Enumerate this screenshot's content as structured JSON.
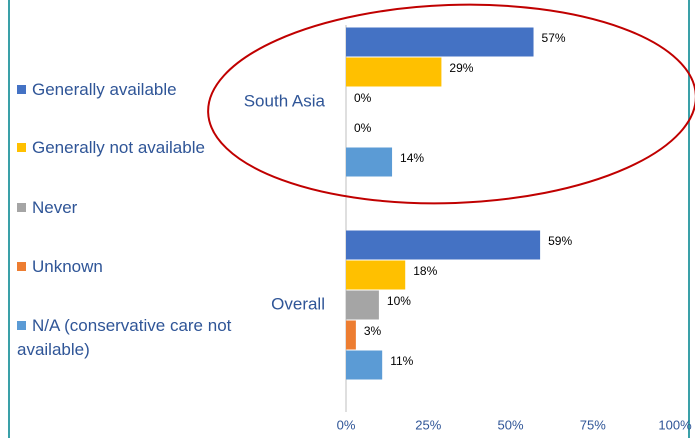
{
  "chart_data": {
    "type": "bar",
    "orientation": "horizontal",
    "categories": [
      "South Asia",
      "Overall"
    ],
    "series": [
      {
        "name": "Generally available",
        "color": "#4472c4",
        "values": [
          57,
          59
        ],
        "value_labels": [
          "57%",
          "59%"
        ]
      },
      {
        "name": "Generally not available",
        "color": "#ffc000",
        "values": [
          29,
          18
        ],
        "value_labels": [
          "29%",
          "18%"
        ]
      },
      {
        "name": "Never",
        "color": "#a5a5a5",
        "values": [
          0,
          10
        ],
        "value_labels": [
          "0%",
          "10%"
        ]
      },
      {
        "name": "Unknown",
        "color": "#ed7d31",
        "values": [
          0,
          3
        ],
        "value_labels": [
          "0%",
          "3%"
        ]
      },
      {
        "name": "N/A (conservative care not available)",
        "color": "#5b9bd5",
        "values": [
          14,
          11
        ],
        "value_labels": [
          "14%",
          "11%"
        ]
      }
    ],
    "xlim": [
      0,
      100
    ],
    "xticks": [
      {
        "value": 0,
        "label": "0%"
      },
      {
        "value": 25,
        "label": "25%"
      },
      {
        "value": 50,
        "label": "50%"
      },
      {
        "value": 75,
        "label": "75%"
      },
      {
        "value": 100,
        "label": "100%"
      }
    ],
    "legend": "left"
  }
}
